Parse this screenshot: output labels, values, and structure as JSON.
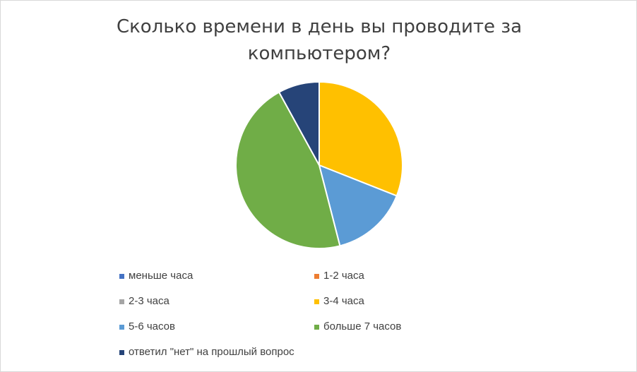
{
  "chart_data": {
    "type": "pie",
    "title": "Сколько времени в день вы проводите за компьютером?",
    "title_lines": [
      "Сколько времени в день вы проводите за",
      "компьютером?"
    ],
    "slices": [
      {
        "label": "меньше часа",
        "value": 0,
        "color": "#4472c4"
      },
      {
        "label": "1-2 часа",
        "value": 0,
        "color": "#ed7d31"
      },
      {
        "label": "2-3 часа",
        "value": 0,
        "color": "#a5a5a5"
      },
      {
        "label": "3-4 часа",
        "value": 31,
        "color": "#ffc000"
      },
      {
        "label": "5-6 часов",
        "value": 15,
        "color": "#5b9bd5"
      },
      {
        "label": "больше 7 часов",
        "value": 46,
        "color": "#70ad47"
      },
      {
        "label": "ответил \"нет\" на прошлый вопрос",
        "value": 8,
        "color": "#264478"
      }
    ],
    "legend_position": "bottom"
  }
}
